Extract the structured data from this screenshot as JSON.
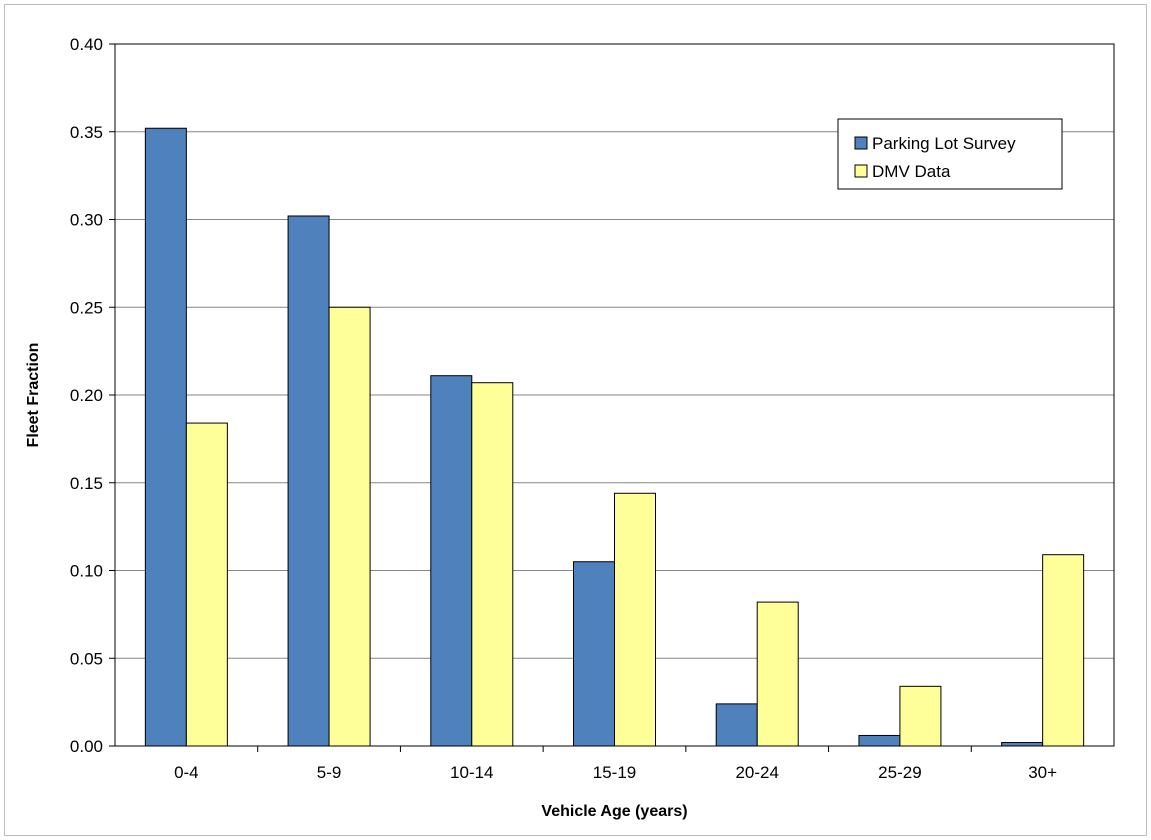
{
  "chart_data": {
    "type": "bar",
    "categories": [
      "0-4",
      "5-9",
      "10-14",
      "15-19",
      "20-24",
      "25-29",
      "30+"
    ],
    "series": [
      {
        "name": "Parking Lot Survey",
        "color": "#4f81bd",
        "values": [
          0.352,
          0.302,
          0.211,
          0.105,
          0.024,
          0.006,
          0.002
        ]
      },
      {
        "name": "DMV Data",
        "color": "#ffff99",
        "values": [
          0.184,
          0.25,
          0.207,
          0.144,
          0.082,
          0.034,
          0.109
        ]
      }
    ],
    "title": "",
    "xlabel": "Vehicle Age (years)",
    "ylabel": "Fleet Fraction",
    "ylim": [
      0,
      0.4
    ],
    "yticks": [
      "0.00",
      "0.05",
      "0.10",
      "0.15",
      "0.20",
      "0.25",
      "0.30",
      "0.35",
      "0.40"
    ],
    "grid": true,
    "legend_position": "top-right"
  }
}
